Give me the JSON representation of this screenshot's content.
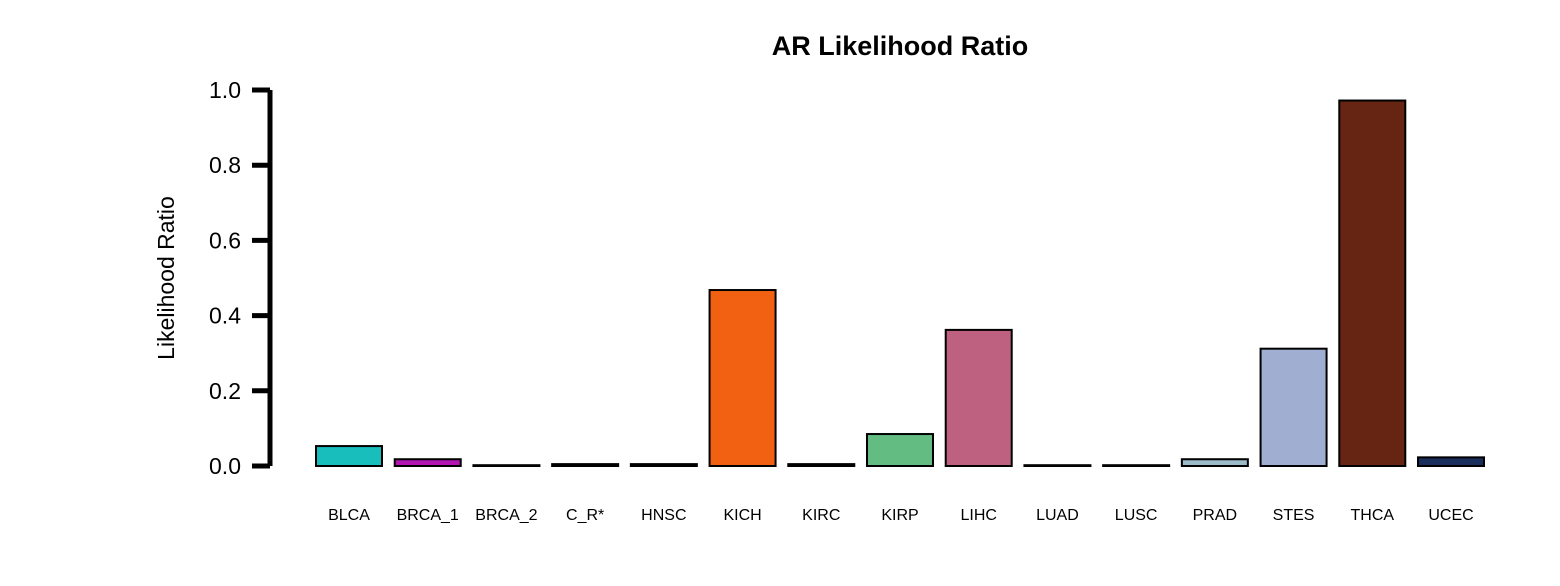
{
  "chart_data": {
    "type": "bar",
    "title": "AR Likelihood Ratio",
    "xlabel": "",
    "ylabel": "Likelihood Ratio",
    "ylim": [
      0,
      1.0
    ],
    "yticks": [
      "0.0",
      "0.2",
      "0.4",
      "0.6",
      "0.8",
      "1.0"
    ],
    "grid": false,
    "legend": "none",
    "categories": [
      "BLCA",
      "BRCA_1",
      "BRCA_2",
      "C_R*",
      "HNSC",
      "KICH",
      "KIRC",
      "KIRP",
      "LIHC",
      "LUAD",
      "LUSC",
      "PRAD",
      "STES",
      "THCA",
      "UCEC"
    ],
    "values": [
      0.053,
      0.018,
      0.001,
      0.005,
      0.005,
      0.468,
      0.005,
      0.085,
      0.362,
      0.001,
      0.001,
      0.018,
      0.312,
      0.972,
      0.023
    ],
    "colors": [
      "#17BEBB",
      "#B215B2",
      "#000000",
      "#000000",
      "#000000",
      "#F26112",
      "#000000",
      "#63BC82",
      "#BE6180",
      "#000000",
      "#000000",
      "#9BBBC9",
      "#9FAED1",
      "#662512",
      "#1A2E5C"
    ]
  }
}
